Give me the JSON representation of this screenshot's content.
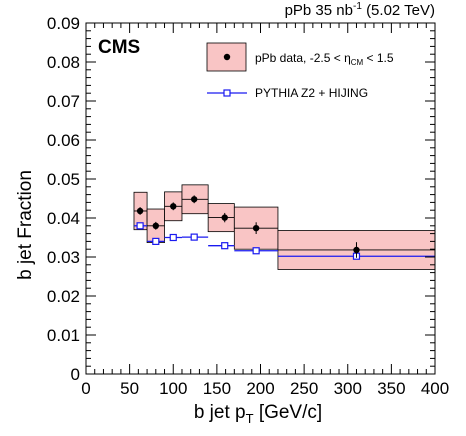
{
  "chart_data": {
    "type": "scatter",
    "header": {
      "main": "pPb 35 nb",
      "sup": "-1",
      "energy": "(5.02 TeV)"
    },
    "experiment_label": "CMS",
    "xlabel": {
      "main": "b jet p",
      "sub": "T",
      "units": "[GeV/c]"
    },
    "ylabel": "b jet Fraction",
    "xlim": [
      0,
      400
    ],
    "ylim": [
      0,
      0.09
    ],
    "x_ticks": [
      0,
      50,
      100,
      150,
      200,
      250,
      300,
      350,
      400
    ],
    "x_tick_labels": [
      "0",
      "50",
      "100",
      "150",
      "200",
      "250",
      "300",
      "350",
      "400"
    ],
    "y_ticks": [
      0,
      0.01,
      0.02,
      0.03,
      0.04,
      0.05,
      0.06,
      0.07,
      0.08,
      0.09
    ],
    "y_tick_labels": [
      "0",
      "0.01",
      "0.02",
      "0.03",
      "0.04",
      "0.05",
      "0.06",
      "0.07",
      "0.08",
      "0.09"
    ],
    "grid": false,
    "legend_position": "top-right",
    "colors": {
      "data_marker": "#000000",
      "syst_fill": "#f9c5c5",
      "mc_line": "#1a1af0",
      "mc_marker_fill": "#ffffff"
    },
    "legend": {
      "data_text_pre": "pPb data, -2.5 < η",
      "data_text_sub": "CM",
      "data_text_post": " < 1.5",
      "mc_text": "PYTHIA Z2 + HIJING"
    },
    "series": [
      {
        "name": "pPb data, -2.5 < η_CM < 1.5",
        "points": [
          {
            "x": 62,
            "y": 0.0418,
            "stat": 0.001,
            "syst": 0.0048,
            "xlow": 55,
            "xhigh": 70
          },
          {
            "x": 80,
            "y": 0.038,
            "stat": 0.001,
            "syst": 0.0043,
            "xlow": 70,
            "xhigh": 90
          },
          {
            "x": 100,
            "y": 0.043,
            "stat": 0.001,
            "syst": 0.0037,
            "xlow": 90,
            "xhigh": 110
          },
          {
            "x": 124,
            "y": 0.0448,
            "stat": 0.001,
            "syst": 0.0037,
            "xlow": 110,
            "xhigh": 140
          },
          {
            "x": 159,
            "y": 0.0401,
            "stat": 0.0012,
            "syst": 0.0036,
            "xlow": 140,
            "xhigh": 170
          },
          {
            "x": 195,
            "y": 0.0374,
            "stat": 0.0015,
            "syst": 0.0054,
            "xlow": 170,
            "xhigh": 220
          },
          {
            "x": 310,
            "y": 0.0318,
            "stat": 0.002,
            "syst": 0.005,
            "xlow": 220,
            "xhigh": 400
          }
        ]
      },
      {
        "name": "PYTHIA Z2 + HIJING",
        "points": [
          {
            "x": 62,
            "y": 0.038,
            "xlow": 55,
            "xhigh": 70
          },
          {
            "x": 80,
            "y": 0.034,
            "xlow": 70,
            "xhigh": 90
          },
          {
            "x": 100,
            "y": 0.035,
            "xlow": 90,
            "xhigh": 110
          },
          {
            "x": 124,
            "y": 0.0351,
            "xlow": 110,
            "xhigh": 140
          },
          {
            "x": 159,
            "y": 0.0329,
            "xlow": 140,
            "xhigh": 170
          },
          {
            "x": 195,
            "y": 0.0316,
            "xlow": 170,
            "xhigh": 220
          },
          {
            "x": 310,
            "y": 0.0302,
            "xlow": 220,
            "xhigh": 400
          }
        ]
      }
    ]
  }
}
